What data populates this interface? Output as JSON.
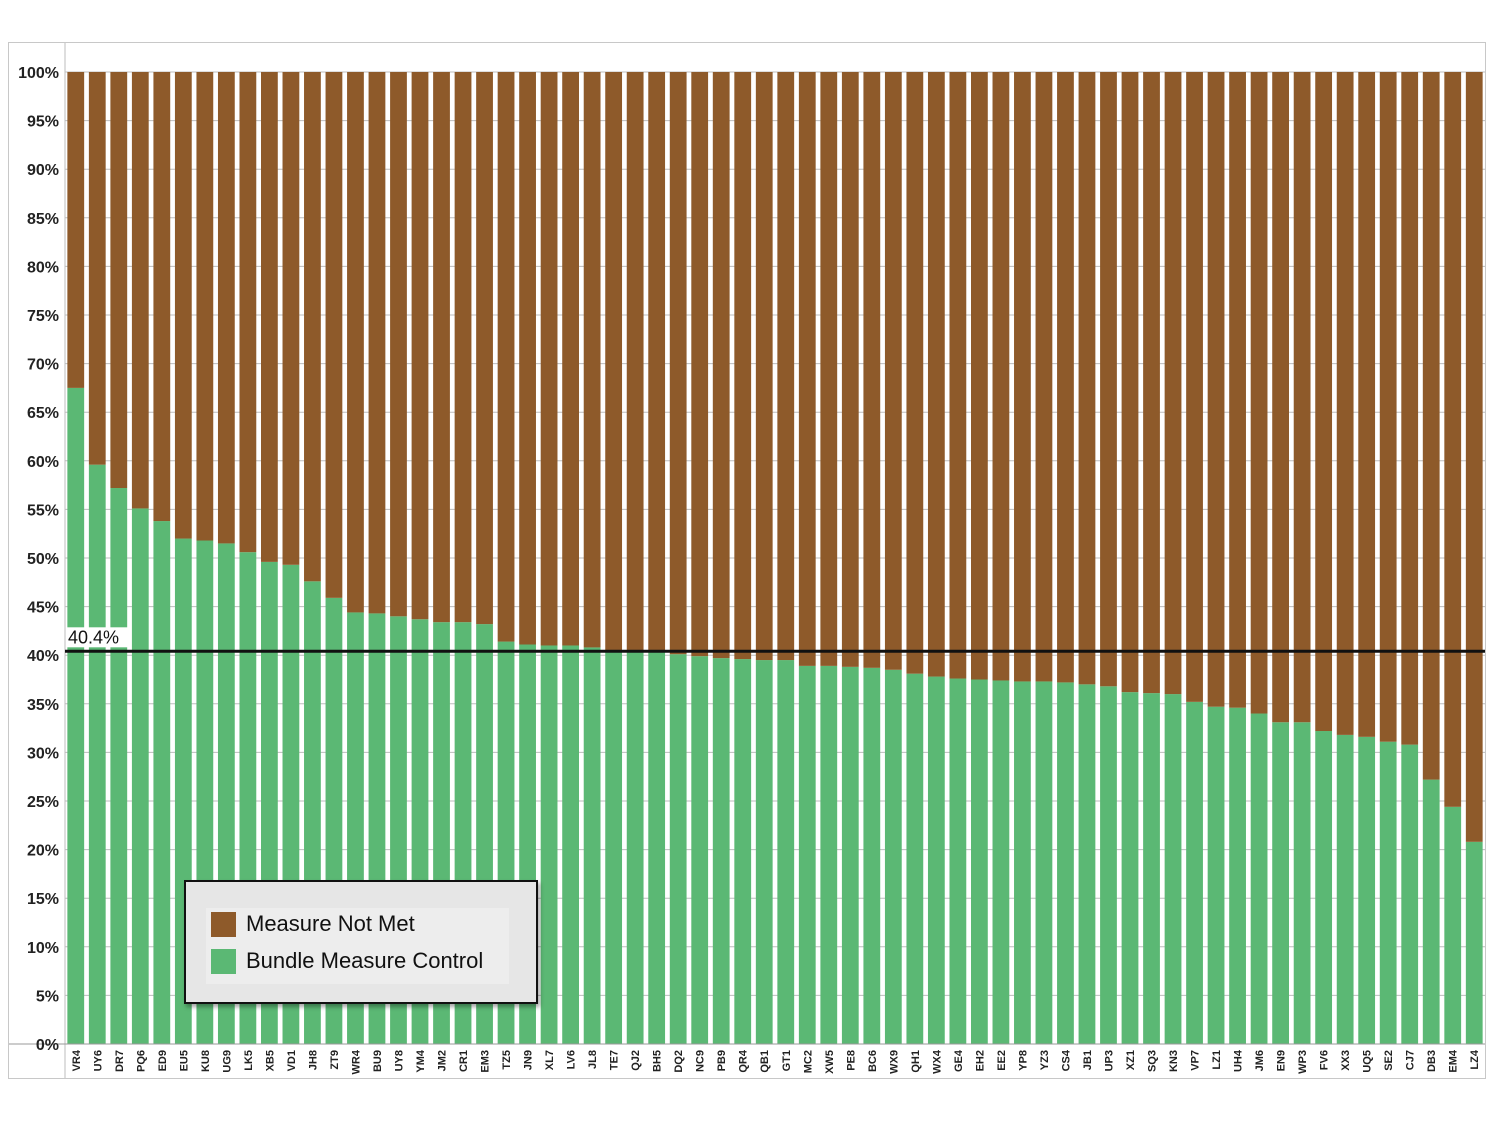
{
  "chart_data": {
    "type": "bar",
    "stacked": true,
    "normalized_percent": true,
    "categories": [
      "VR4",
      "UY6",
      "DR7",
      "PQ6",
      "ED9",
      "EU5",
      "KU8",
      "UG9",
      "LK5",
      "XB5",
      "VD1",
      "JH8",
      "ZT9",
      "WR4",
      "BU9",
      "UY8",
      "YM4",
      "JM2",
      "CR1",
      "EM3",
      "TZ5",
      "JN9",
      "XL7",
      "LV6",
      "JL8",
      "TE7",
      "QJ2",
      "BH5",
      "DQ2",
      "NC9",
      "PB9",
      "QR4",
      "QB1",
      "GT1",
      "MC2",
      "XW5",
      "PE8",
      "BC6",
      "WX9",
      "QH1",
      "WX4",
      "GE4",
      "EH2",
      "EE2",
      "YP8",
      "YZ3",
      "CS4",
      "JB1",
      "UP3",
      "XZ1",
      "SQ3",
      "KN3",
      "VP7",
      "LZ1",
      "UH4",
      "JM6",
      "EN9",
      "WP3",
      "FV6",
      "XX3",
      "UQ5",
      "SE2",
      "CJ7",
      "DB3",
      "EM4",
      "LZ4"
    ],
    "series": [
      {
        "name": "Bundle Measure Control",
        "color": "#5bb874",
        "values": [
          67.5,
          59.6,
          57.2,
          55.1,
          53.8,
          52.0,
          51.8,
          51.5,
          50.6,
          49.6,
          49.3,
          47.6,
          45.9,
          44.4,
          44.3,
          44.0,
          43.7,
          43.4,
          43.4,
          43.2,
          41.4,
          41.1,
          41.0,
          41.0,
          40.8,
          40.5,
          40.5,
          40.4,
          40.1,
          39.9,
          39.7,
          39.6,
          39.5,
          39.5,
          38.9,
          38.9,
          38.8,
          38.7,
          38.5,
          38.1,
          37.8,
          37.6,
          37.5,
          37.4,
          37.3,
          37.3,
          37.2,
          37.0,
          36.8,
          36.2,
          36.1,
          36.0,
          35.2,
          34.7,
          34.6,
          34.0,
          33.1,
          33.1,
          32.2,
          31.8,
          31.6,
          31.1,
          30.8,
          27.2,
          24.4,
          20.8
        ]
      },
      {
        "name": "Measure Not Met",
        "color": "#8e5a2a",
        "values": [
          32.5,
          40.4,
          42.8,
          44.9,
          46.2,
          48.0,
          48.2,
          48.5,
          49.4,
          50.4,
          50.7,
          52.4,
          54.1,
          55.6,
          55.7,
          56.0,
          56.3,
          56.6,
          56.6,
          56.8,
          58.6,
          58.9,
          59.0,
          59.0,
          59.2,
          59.5,
          59.5,
          59.6,
          59.9,
          60.1,
          60.3,
          60.4,
          60.5,
          60.5,
          61.1,
          61.1,
          61.2,
          61.3,
          61.5,
          61.9,
          62.2,
          62.4,
          62.5,
          62.6,
          62.7,
          62.7,
          62.8,
          63.0,
          63.2,
          63.8,
          63.9,
          64.0,
          64.8,
          65.3,
          65.4,
          66.0,
          66.9,
          66.9,
          67.8,
          68.2,
          68.4,
          68.9,
          69.2,
          72.8,
          75.6,
          79.2
        ]
      }
    ],
    "yticks": [
      "0%",
      "5%",
      "10%",
      "15%",
      "20%",
      "25%",
      "30%",
      "35%",
      "40%",
      "45%",
      "50%",
      "55%",
      "60%",
      "65%",
      "70%",
      "75%",
      "80%",
      "85%",
      "90%",
      "95%",
      "100%"
    ],
    "ylim": [
      0,
      100
    ],
    "reference_line": {
      "value": 40.4,
      "label": "40.4%"
    },
    "grid": true,
    "legend": {
      "placement": "bottom-left",
      "items": [
        "Measure Not Met",
        "Bundle Measure Control"
      ]
    },
    "title": "",
    "xlabel": "",
    "ylabel": ""
  }
}
